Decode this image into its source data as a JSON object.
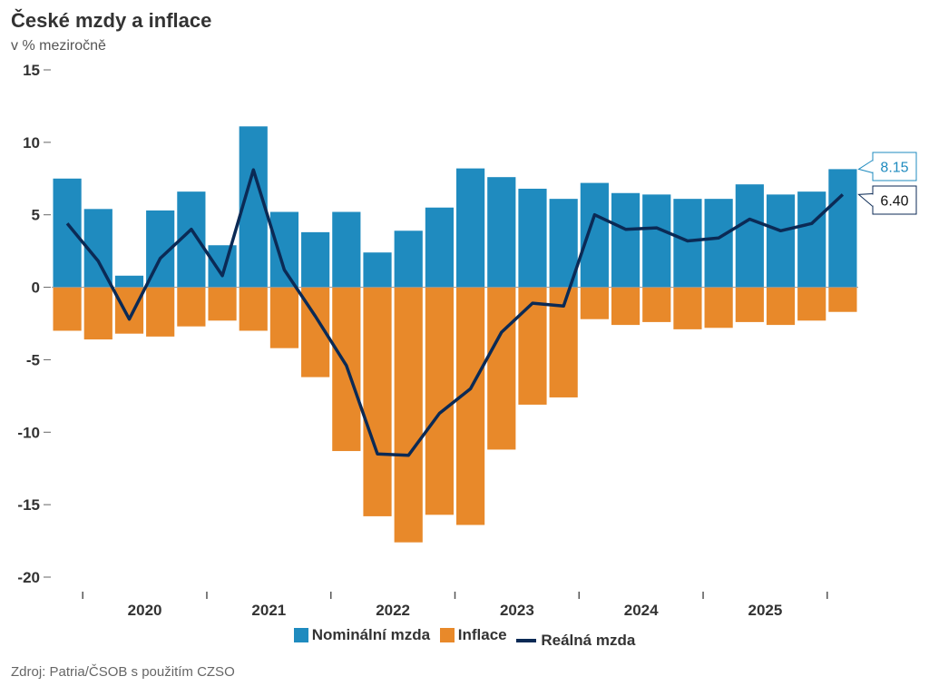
{
  "title": "České mzdy a inflace",
  "subtitle": "v % meziročně",
  "source": "Zdroj: Patria/ČSOB s použitím CZSO",
  "colors": {
    "nominal": "#1f8bbf",
    "inflation": "#e8892a",
    "real": "#0b2a55"
  },
  "chart_data": {
    "type": "bar",
    "ylim": [
      -20,
      15
    ],
    "yticks": [
      "15",
      "10",
      "5",
      "0",
      "-5",
      "-10",
      "-15",
      "-20"
    ],
    "year_labels": [
      "2020",
      "2021",
      "2022",
      "2023",
      "2024",
      "2025"
    ],
    "series": [
      {
        "name": "Nominální mzda",
        "kind": "bar",
        "values": [
          7.5,
          5.4,
          0.8,
          5.3,
          6.6,
          2.9,
          11.1,
          5.2,
          3.8,
          5.2,
          2.4,
          3.9,
          5.5,
          8.2,
          7.6,
          6.8,
          6.1,
          7.2,
          6.5,
          6.4,
          6.1,
          6.1,
          7.1,
          6.4,
          6.6,
          8.15
        ]
      },
      {
        "name": "Inflace",
        "kind": "bar",
        "values": [
          -3.0,
          -3.6,
          -3.2,
          -3.4,
          -2.7,
          -2.3,
          -3.0,
          -4.2,
          -6.2,
          -11.3,
          -15.8,
          -17.6,
          -15.7,
          -16.4,
          -11.2,
          -8.1,
          -7.6,
          -2.2,
          -2.6,
          -2.4,
          -2.9,
          -2.8,
          -2.4,
          -2.6,
          -2.3,
          -1.7
        ]
      },
      {
        "name": "Reálná mzda",
        "kind": "line",
        "values": [
          4.4,
          1.8,
          -2.2,
          2.0,
          4.0,
          0.8,
          8.1,
          1.2,
          -2.0,
          -5.4,
          -11.5,
          -11.6,
          -8.7,
          -7.0,
          -3.1,
          -1.1,
          -1.3,
          5.0,
          4.0,
          4.1,
          3.2,
          3.4,
          4.7,
          3.9,
          4.4,
          6.4
        ]
      }
    ],
    "callouts": [
      {
        "text": "8.15",
        "series": "Nominální mzda"
      },
      {
        "text": "6.40",
        "series": "Reálná mzda"
      }
    ],
    "legend": [
      "Nominální mzda",
      "Inflace",
      "Reálná mzda"
    ],
    "legend_position": "bottom"
  }
}
